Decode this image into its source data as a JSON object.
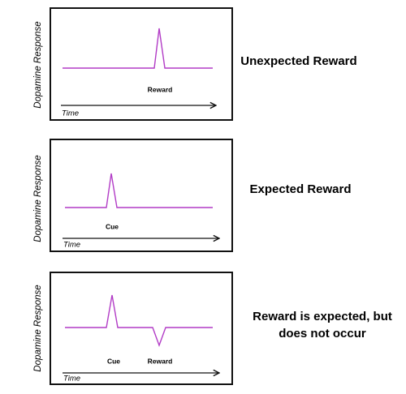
{
  "panels": [
    {
      "y_label": "Dopamine Response",
      "x_label": "Time",
      "annotations": [
        "Reward"
      ],
      "caption": [
        "Unexpected Reward"
      ]
    },
    {
      "y_label": "Dopamine Response",
      "x_label": "Time",
      "annotations": [
        "Cue"
      ],
      "caption": [
        "Expected Reward"
      ]
    },
    {
      "y_label": "Dopamine Response",
      "x_label": "Time",
      "annotations": [
        "Cue",
        "Reward"
      ],
      "caption": [
        "Reward is expected, but",
        "does not occur"
      ]
    }
  ]
}
